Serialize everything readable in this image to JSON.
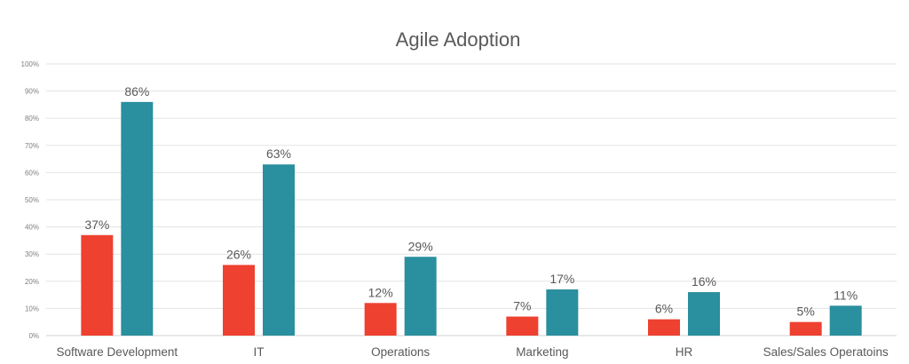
{
  "chart_data": {
    "type": "bar",
    "title": "Agile Adoption",
    "xlabel": "",
    "ylabel": "",
    "ylim": [
      0,
      100
    ],
    "yticks": [
      "0%",
      "10%",
      "20%",
      "30%",
      "40%",
      "50%",
      "60%",
      "70%",
      "80%",
      "90%",
      "100%"
    ],
    "grid": true,
    "legend": "none",
    "categories": [
      "Software Development",
      "IT",
      "Operations",
      "Marketing",
      "HR",
      "Sales/Sales Operatoins"
    ],
    "series": [
      {
        "values": [
          37,
          26,
          12,
          7,
          6,
          5
        ],
        "labels": [
          "37%",
          "26%",
          "12%",
          "7%",
          "6%",
          "5%"
        ],
        "color": "#EE4130"
      },
      {
        "values": [
          86,
          63,
          29,
          17,
          16,
          11
        ],
        "labels": [
          "86%",
          "63%",
          "29%",
          "17%",
          "16%",
          "11%"
        ],
        "color": "#2A8F9E"
      }
    ]
  }
}
